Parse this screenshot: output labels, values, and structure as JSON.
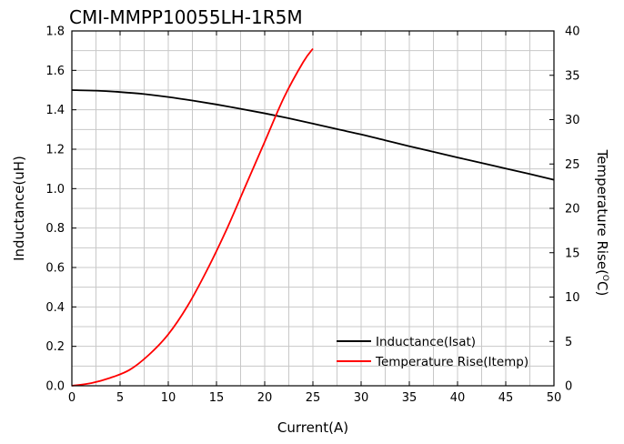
{
  "chart_data": {
    "type": "line",
    "title": "CMI-MMPP10055LH-1R5M",
    "xlabel": "Current(A)",
    "ylabel": "Inductance(uH)",
    "y2label": "Temperature Rise(",
    "y2label_unit_sup": "O",
    "y2label_unit_end": "C)",
    "xlim": [
      0,
      50
    ],
    "ylim": [
      0,
      1.8
    ],
    "y2lim": [
      0,
      40
    ],
    "x_ticks": [
      0,
      5,
      10,
      15,
      20,
      25,
      30,
      35,
      40,
      45,
      50
    ],
    "x_tick_labels": [
      "0",
      "5",
      "10",
      "15",
      "20",
      "25",
      "30",
      "35",
      "40",
      "45",
      "50"
    ],
    "y_ticks": [
      0,
      0.2,
      0.4,
      0.6,
      0.8,
      1.0,
      1.2,
      1.4,
      1.6,
      1.8
    ],
    "y_tick_labels": [
      "0.0",
      "0.2",
      "0.4",
      "0.6",
      "0.8",
      "1.0",
      "1.2",
      "1.4",
      "1.6",
      "1.8"
    ],
    "y2_ticks": [
      0,
      5,
      10,
      15,
      20,
      25,
      30,
      35,
      40
    ],
    "y2_tick_labels": [
      "0",
      "5",
      "10",
      "15",
      "20",
      "25",
      "30",
      "35",
      "40"
    ],
    "grid": true,
    "legend_position": "bottom-right",
    "series": [
      {
        "name": "Inductance(Isat)",
        "axis": "left",
        "color": "#000000",
        "x": [
          0,
          2.5,
          5,
          7.5,
          10,
          12.5,
          15,
          17.5,
          20,
          22.5,
          25,
          27.5,
          30,
          32.5,
          35,
          37.5,
          40,
          42.5,
          45,
          47.5,
          50
        ],
        "y": [
          1.5,
          1.497,
          1.49,
          1.48,
          1.465,
          1.447,
          1.427,
          1.405,
          1.382,
          1.357,
          1.33,
          1.302,
          1.275,
          1.245,
          1.215,
          1.187,
          1.158,
          1.13,
          1.102,
          1.074,
          1.045
        ]
      },
      {
        "name": "Temperature Rise(Itemp)",
        "axis": "right",
        "color": "#ff0000",
        "x": [
          0,
          2,
          4,
          6,
          8,
          10,
          12,
          14,
          16,
          18,
          20,
          22,
          24,
          25
        ],
        "y": [
          0,
          0.3,
          0.9,
          1.8,
          3.5,
          5.8,
          9.0,
          13.0,
          17.5,
          22.5,
          27.5,
          32.5,
          36.5,
          38
        ]
      }
    ]
  }
}
